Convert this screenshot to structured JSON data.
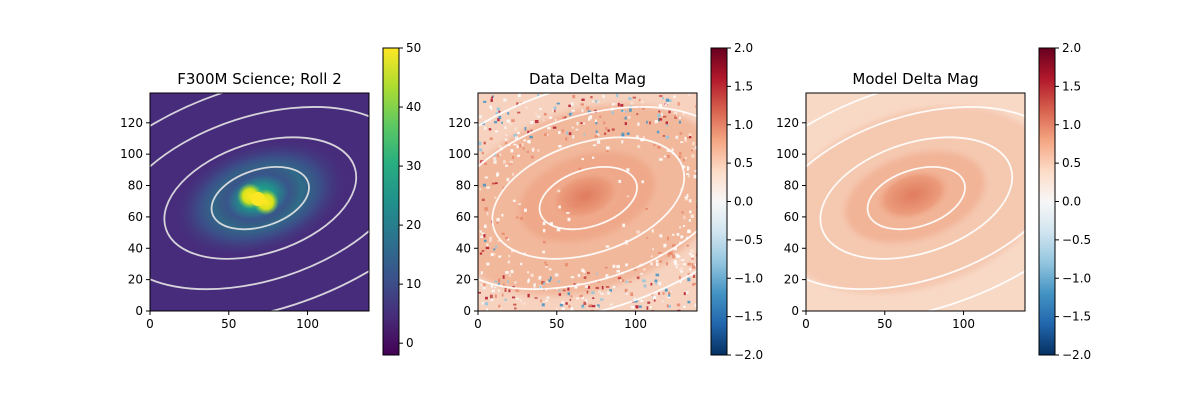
{
  "chart_data": [
    {
      "type": "heatmap",
      "title": "F300M Science; Roll 2",
      "xlim": [
        0,
        139
      ],
      "ylim": [
        0,
        139
      ],
      "xticks": [
        0,
        50,
        100
      ],
      "yticks": [
        0,
        20,
        40,
        60,
        80,
        100,
        120
      ],
      "colormap": "viridis",
      "clim": [
        -2,
        50
      ],
      "colorbar_ticks": [
        0,
        10,
        20,
        30,
        40,
        50
      ],
      "features": "two bright blobs near (62,74) and (74,70) on a dark background",
      "ellipse_overlay": {
        "color": "#e6e6e6",
        "center": [
          70,
          72
        ],
        "angle_deg": 18,
        "semi_axes": [
          [
            32,
            18
          ],
          [
            63,
            35
          ],
          [
            97,
            52
          ],
          [
            132,
            71
          ]
        ]
      }
    },
    {
      "type": "heatmap",
      "title": "Data Delta Mag",
      "xlim": [
        0,
        139
      ],
      "ylim": [
        0,
        139
      ],
      "xticks": [
        0,
        50,
        100
      ],
      "yticks": [
        0,
        20,
        40,
        60,
        80,
        100,
        120
      ],
      "colormap": "RdBu_r",
      "clim": [
        -2,
        2
      ],
      "colorbar_ticks": [
        -2.0,
        -1.5,
        -1.0,
        -0.5,
        0.0,
        0.5,
        1.0,
        1.5,
        2.0
      ],
      "features": "noisy; ~0.8 in central ellipse, ~0.5 in outer rings, speckled edges",
      "ellipse_overlay": {
        "color": "#ffffff",
        "center": [
          70,
          72
        ],
        "angle_deg": 18,
        "semi_axes": [
          [
            32,
            18
          ],
          [
            63,
            35
          ],
          [
            97,
            52
          ],
          [
            132,
            71
          ]
        ]
      }
    },
    {
      "type": "heatmap",
      "title": "Model Delta Mag",
      "xlim": [
        0,
        139
      ],
      "ylim": [
        0,
        139
      ],
      "xticks": [
        0,
        50,
        100
      ],
      "yticks": [
        0,
        20,
        40,
        60,
        80,
        100,
        120
      ],
      "colormap": "RdBu_r",
      "clim": [
        -2,
        2
      ],
      "colorbar_ticks": [
        -2.0,
        -1.5,
        -1.0,
        -0.5,
        0.0,
        0.5,
        1.0,
        1.5,
        2.0
      ],
      "features": "smooth; ~0.8 in central ellipse, ~0.4 outer",
      "ellipse_overlay": {
        "color": "#ffffff",
        "center": [
          70,
          72
        ],
        "angle_deg": 18,
        "semi_axes": [
          [
            32,
            18
          ],
          [
            63,
            35
          ],
          [
            97,
            52
          ],
          [
            132,
            71
          ]
        ]
      }
    }
  ]
}
